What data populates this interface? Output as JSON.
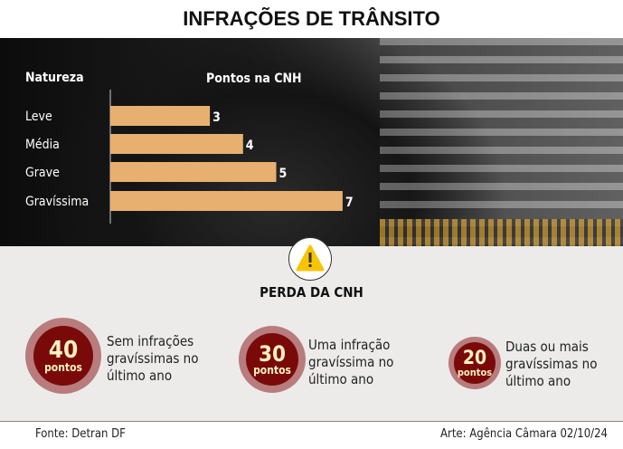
{
  "title": "INFRAÇÕES DE TRÂNSITO",
  "chart_data": {
    "type": "bar",
    "orientation": "horizontal",
    "xlabel_left": "Natureza",
    "xlabel": "Pontos na CNH",
    "categories": [
      "Leve",
      "Média",
      "Grave",
      "Gravíssima"
    ],
    "values": [
      3,
      4,
      5,
      7
    ],
    "bar_color": "#e8b070"
  },
  "section_title": "PERDA DA CNH",
  "items": [
    {
      "value": "40",
      "unit": "pontos",
      "text": "Sem infrações gravíssimas no último ano"
    },
    {
      "value": "30",
      "unit": "pontos",
      "text": "Uma infração gravíssima no último ano"
    },
    {
      "value": "20",
      "unit": "pontos",
      "text": "Duas ou mais gravíssimas no último ano"
    }
  ],
  "footer": {
    "source": "Fonte: Detran DF",
    "credit": "Arte: Agência Câmara 02/10/24"
  }
}
